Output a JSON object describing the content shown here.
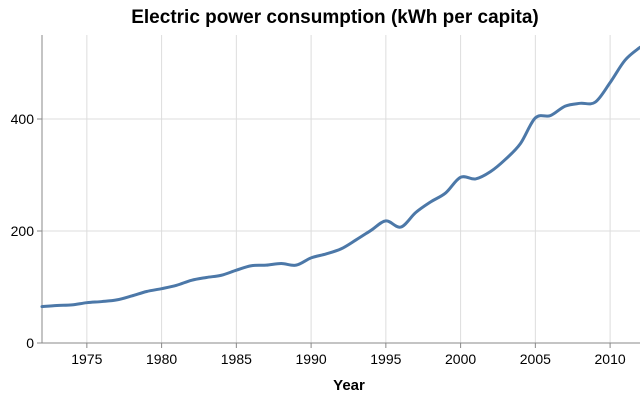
{
  "colors": {
    "line": "#4c78a8",
    "grid": "#dddddd",
    "axis": "#888888"
  },
  "chart_data": {
    "type": "line",
    "title": "Electric power consumption (kWh per capita)",
    "xlabel": "Year",
    "ylabel": "",
    "xlim": [
      1972,
      2012
    ],
    "ylim": [
      0,
      550
    ],
    "xticks": [
      1975,
      1980,
      1985,
      1990,
      1995,
      2000,
      2005,
      2010
    ],
    "yticks": [
      0,
      200,
      400
    ],
    "grid": true,
    "series": [
      {
        "name": "Electric power consumption",
        "x": [
          1972,
          1973,
          1974,
          1975,
          1976,
          1977,
          1978,
          1979,
          1980,
          1981,
          1982,
          1983,
          1984,
          1985,
          1986,
          1987,
          1988,
          1989,
          1990,
          1991,
          1992,
          1993,
          1994,
          1995,
          1996,
          1997,
          1998,
          1999,
          2000,
          2001,
          2002,
          2003,
          2004,
          2005,
          2006,
          2007,
          2008,
          2009,
          2010,
          2011,
          2012
        ],
        "values": [
          65,
          67,
          68,
          72,
          74,
          77,
          84,
          92,
          97,
          103,
          112,
          117,
          121,
          130,
          138,
          139,
          142,
          139,
          152,
          159,
          168,
          184,
          201,
          218,
          207,
          233,
          252,
          268,
          296,
          293,
          306,
          328,
          356,
          402,
          406,
          423,
          428,
          430,
          465,
          505,
          528
        ]
      }
    ]
  }
}
